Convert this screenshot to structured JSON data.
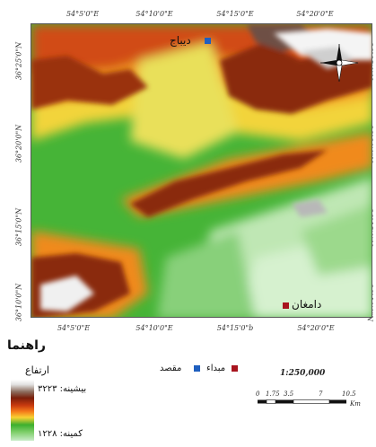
{
  "map": {
    "top_ticks": [
      "54°5'0\"E",
      "54°10'0\"E",
      "54°15'0\"E",
      "54°20'0\"E"
    ],
    "bottom_ticks": [
      "54°5'0\"E",
      "54°10'0\"E",
      "54°15'0\"b",
      "54°20'0\"E"
    ],
    "left_ticks": [
      "36°25'0\"N",
      "36°20'0\"N",
      "36°15'0\"N",
      "36°10'0\"N"
    ],
    "right_ticks": [
      "36°25'0\"N",
      "36°20'0\"N",
      "36°15'0\"N",
      "36°10'0\"N"
    ],
    "places": [
      {
        "name": "دیباج",
        "role": "destination",
        "color": "#1f5fbf"
      },
      {
        "name": "دامغان",
        "role": "origin",
        "color": "#a8141e"
      }
    ],
    "north_arrow_icon": "compass-rose-icon"
  },
  "legend": {
    "title": "راهنما",
    "elevation_label": "ارتفاع",
    "max_label": "بیشینه: ۳۲۲۳",
    "min_label": "کمینه: ۱۲۲۸",
    "origin_label": "مبداء",
    "destination_label": "مقصد",
    "origin_color": "#a8141e",
    "destination_color": "#1f5fbf"
  },
  "scale": {
    "ratio": "1:250,000",
    "labels": [
      "0",
      "1.75",
      "3.5",
      "7",
      "10.5"
    ],
    "unit": "Km"
  }
}
